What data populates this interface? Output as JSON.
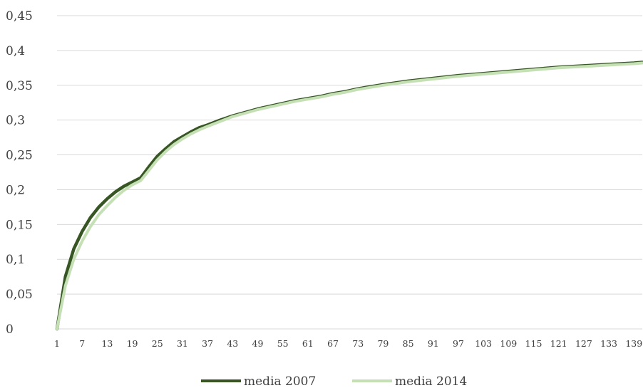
{
  "chart_data": {
    "type": "line",
    "title": "",
    "xlabel": "",
    "ylabel": "",
    "x_tick_labels": [
      "1",
      "7",
      "13",
      "19",
      "25",
      "31",
      "37",
      "43",
      "49",
      "55",
      "61",
      "67",
      "73",
      "79",
      "85",
      "91",
      "97",
      "103",
      "109",
      "115",
      "121",
      "127",
      "133",
      "139"
    ],
    "xlim": [
      1,
      141
    ],
    "y_tick_labels": [
      "0",
      "0,05",
      "0,1",
      "0,15",
      "0,2",
      "0,25",
      "0,3",
      "0,35",
      "0,4",
      "0,45"
    ],
    "ylim": [
      0,
      0.45
    ],
    "grid": true,
    "legend_position": "bottom",
    "series": [
      {
        "name": "media 2007",
        "color": "#375623",
        "points": [
          [
            1,
            0
          ],
          [
            3,
            0.075
          ],
          [
            5,
            0.115
          ],
          [
            7,
            0.14
          ],
          [
            9,
            0.16
          ],
          [
            11,
            0.175
          ],
          [
            13,
            0.187
          ],
          [
            15,
            0.197
          ],
          [
            17,
            0.205
          ],
          [
            19,
            0.211
          ],
          [
            21,
            0.217
          ],
          [
            23,
            0.233
          ],
          [
            25,
            0.248
          ],
          [
            27,
            0.259
          ],
          [
            29,
            0.269
          ],
          [
            31,
            0.276
          ],
          [
            33,
            0.283
          ],
          [
            35,
            0.289
          ],
          [
            37,
            0.293
          ],
          [
            40,
            0.3
          ],
          [
            43,
            0.306
          ],
          [
            46,
            0.311
          ],
          [
            49,
            0.316
          ],
          [
            52,
            0.32
          ],
          [
            55,
            0.324
          ],
          [
            58,
            0.328
          ],
          [
            61,
            0.331
          ],
          [
            64,
            0.334
          ],
          [
            67,
            0.338
          ],
          [
            70,
            0.341
          ],
          [
            73,
            0.345
          ],
          [
            76,
            0.348
          ],
          [
            79,
            0.351
          ],
          [
            85,
            0.356
          ],
          [
            91,
            0.36
          ],
          [
            97,
            0.364
          ],
          [
            103,
            0.367
          ],
          [
            109,
            0.37
          ],
          [
            115,
            0.373
          ],
          [
            121,
            0.376
          ],
          [
            127,
            0.378
          ],
          [
            133,
            0.38
          ],
          [
            139,
            0.382
          ],
          [
            141,
            0.383
          ]
        ]
      },
      {
        "name": "media 2014",
        "color": "#c5e0b4",
        "points": [
          [
            1,
            0
          ],
          [
            3,
            0.062
          ],
          [
            5,
            0.1
          ],
          [
            7,
            0.126
          ],
          [
            9,
            0.147
          ],
          [
            11,
            0.164
          ],
          [
            13,
            0.177
          ],
          [
            15,
            0.189
          ],
          [
            17,
            0.199
          ],
          [
            19,
            0.207
          ],
          [
            21,
            0.213
          ],
          [
            23,
            0.228
          ],
          [
            25,
            0.243
          ],
          [
            27,
            0.255
          ],
          [
            29,
            0.265
          ],
          [
            31,
            0.273
          ],
          [
            33,
            0.28
          ],
          [
            35,
            0.286
          ],
          [
            37,
            0.291
          ],
          [
            40,
            0.298
          ],
          [
            43,
            0.305
          ],
          [
            46,
            0.31
          ],
          [
            49,
            0.315
          ],
          [
            52,
            0.319
          ],
          [
            55,
            0.323
          ],
          [
            58,
            0.327
          ],
          [
            61,
            0.33
          ],
          [
            64,
            0.333
          ],
          [
            67,
            0.337
          ],
          [
            70,
            0.34
          ],
          [
            73,
            0.344
          ],
          [
            76,
            0.347
          ],
          [
            79,
            0.35
          ],
          [
            85,
            0.355
          ],
          [
            91,
            0.359
          ],
          [
            97,
            0.363
          ],
          [
            103,
            0.366
          ],
          [
            109,
            0.369
          ],
          [
            115,
            0.372
          ],
          [
            121,
            0.375
          ],
          [
            127,
            0.377
          ],
          [
            133,
            0.379
          ],
          [
            139,
            0.381
          ],
          [
            141,
            0.382
          ]
        ]
      }
    ]
  }
}
